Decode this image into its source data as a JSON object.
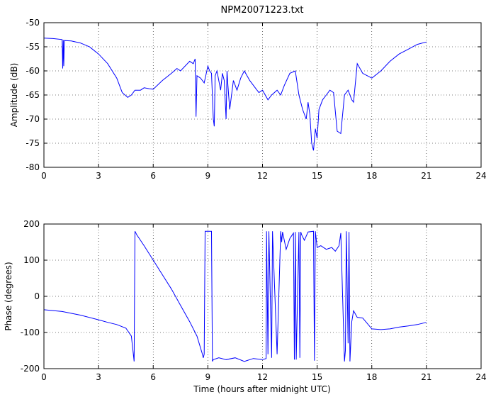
{
  "chart_data": [
    {
      "type": "line",
      "title": "NPM20071223.txt",
      "xlabel": "",
      "ylabel": "Amplitude (dB)",
      "xlim": [
        0,
        24
      ],
      "ylim": [
        -80,
        -50
      ],
      "xticks": [
        0,
        3,
        6,
        9,
        12,
        15,
        18,
        21,
        24
      ],
      "yticks": [
        -80,
        -75,
        -70,
        -65,
        -60,
        -55,
        -50
      ],
      "grid": true,
      "color": "#0000ff",
      "series": [
        {
          "x": [
            0,
            0.5,
            1.0,
            1.03,
            1.06,
            1.09,
            1.12,
            1.5,
            2,
            2.5,
            3,
            3.5,
            4,
            4.3,
            4.6,
            4.8,
            5.0,
            5.3,
            5.5,
            5.8,
            6.0,
            6.5,
            7.0,
            7.3,
            7.5,
            8.0,
            8.2,
            8.3,
            8.35,
            8.4,
            8.6,
            8.8,
            9.0,
            9.1,
            9.2,
            9.3,
            9.35,
            9.4,
            9.5,
            9.7,
            9.8,
            9.9,
            10.0,
            10.05,
            10.1,
            10.2,
            10.4,
            10.6,
            10.8,
            11.0,
            11.3,
            11.6,
            11.8,
            12.0,
            12.3,
            12.5,
            12.8,
            13.0,
            13.2,
            13.5,
            13.8,
            14.0,
            14.2,
            14.4,
            14.5,
            14.6,
            14.7,
            14.8,
            14.9,
            15.0,
            15.1,
            15.3,
            15.5,
            15.7,
            15.9,
            16.1,
            16.3,
            16.5,
            16.7,
            16.9,
            17.0,
            17.2,
            17.5,
            18.0,
            18.5,
            19.0,
            19.5,
            20.0,
            20.5,
            21.0
          ],
          "y": [
            -53.2,
            -53.3,
            -53.5,
            -59.5,
            -53.6,
            -59.0,
            -53.7,
            -53.8,
            -54.2,
            -55.0,
            -56.5,
            -58.5,
            -61.5,
            -64.5,
            -65.5,
            -65.0,
            -64.0,
            -64.0,
            -63.5,
            -63.7,
            -63.8,
            -62.0,
            -60.5,
            -59.5,
            -60.0,
            -58.0,
            -58.5,
            -57.5,
            -69.5,
            -61.0,
            -61.5,
            -62.5,
            -59.0,
            -60.0,
            -60.5,
            -70.0,
            -71.5,
            -61.0,
            -60.0,
            -64.0,
            -60.5,
            -62.0,
            -70.0,
            -60.0,
            -63.0,
            -68.0,
            -62.0,
            -64.0,
            -61.5,
            -60.0,
            -62.0,
            -63.5,
            -64.5,
            -64.0,
            -66.0,
            -65.0,
            -64.0,
            -65.0,
            -63.0,
            -60.5,
            -60.0,
            -65.0,
            -68.0,
            -70.0,
            -66.5,
            -69.0,
            -75.0,
            -76.5,
            -72.0,
            -74.0,
            -68.0,
            -66.0,
            -65.0,
            -64.0,
            -64.5,
            -72.5,
            -73.0,
            -65.0,
            -64.0,
            -66.0,
            -66.5,
            -58.5,
            -60.5,
            -61.5,
            -60.0,
            -58.0,
            -56.5,
            -55.5,
            -54.5,
            -54.0
          ]
        }
      ]
    },
    {
      "type": "line",
      "title": "",
      "xlabel": "Time (hours after midnight UTC)",
      "ylabel": "Phase (degrees)",
      "xlim": [
        0,
        24
      ],
      "ylim": [
        -200,
        200
      ],
      "xticks": [
        0,
        3,
        6,
        9,
        12,
        15,
        18,
        21,
        24
      ],
      "yticks": [
        -200,
        -100,
        0,
        100,
        200
      ],
      "grid": true,
      "color": "#0000ff",
      "series": [
        {
          "x": [
            0,
            1,
            2,
            3,
            3.5,
            4.0,
            4.5,
            4.8,
            4.95,
            5.0,
            5.1,
            5.5,
            6.0,
            6.5,
            7.0,
            7.5,
            8.0,
            8.4,
            8.7,
            8.75,
            8.8,
            8.85,
            9.2,
            9.25,
            9.3,
            9.6,
            10.0,
            10.5,
            11.0,
            11.5,
            12.0,
            12.2,
            12.22,
            12.3,
            12.35,
            12.5,
            12.55,
            12.8,
            13.0,
            13.05,
            13.1,
            13.3,
            13.5,
            13.7,
            13.75,
            13.8,
            13.85,
            14.0,
            14.05,
            14.1,
            14.15,
            14.3,
            14.5,
            14.8,
            14.85,
            14.9,
            15.0,
            15.2,
            15.5,
            15.8,
            16.0,
            16.2,
            16.3,
            16.5,
            16.55,
            16.6,
            16.7,
            16.75,
            16.8,
            16.9,
            17.0,
            17.2,
            17.5,
            18.0,
            18.5,
            19.0,
            19.5,
            20.0,
            20.5,
            21.0
          ],
          "y": [
            -37,
            -42,
            -52,
            -65,
            -72,
            -78,
            -88,
            -110,
            -180,
            180,
            170,
            140,
            100,
            60,
            20,
            -25,
            -70,
            -110,
            -160,
            -170,
            -160,
            180,
            180,
            -180,
            -175,
            -170,
            -175,
            -170,
            -180,
            -172,
            -175,
            -172,
            180,
            -160,
            180,
            -170,
            180,
            -160,
            180,
            150,
            178,
            130,
            160,
            175,
            -175,
            178,
            -175,
            178,
            -170,
            178,
            170,
            155,
            178,
            180,
            -178,
            180,
            135,
            140,
            130,
            135,
            125,
            140,
            175,
            -180,
            -150,
            180,
            -130,
            178,
            -180,
            -70,
            -40,
            -58,
            -60,
            -90,
            -92,
            -90,
            -85,
            -82,
            -78,
            -72
          ]
        }
      ]
    }
  ]
}
